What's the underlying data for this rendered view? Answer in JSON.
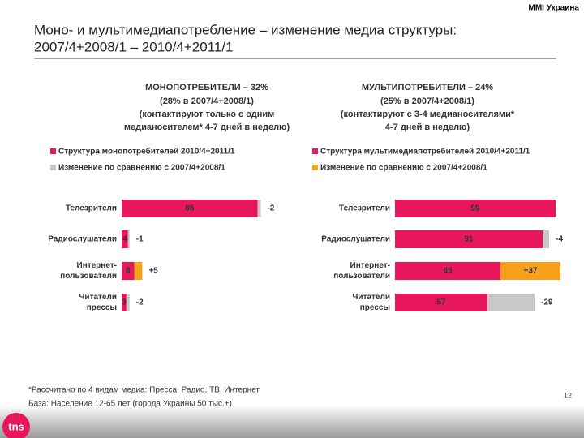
{
  "header": {
    "brand": "MMI Украина",
    "title": [
      "Моно- и мультимедиапотребление – изменение медиа структуры:",
      "2007/4+2008/1 – 2010/4+2011/1"
    ]
  },
  "chart_data": [
    {
      "type": "bar",
      "title": "МОНОПОТРЕБИТЕЛИ – 32%",
      "subtitle": [
        "(28% в 2007/4+2008/1)",
        "(контактируют только с одним",
        "медианосителем* 4-7 дней в неделю)"
      ],
      "categories": [
        [
          "Телезрители"
        ],
        [
          "Радиослушатели"
        ],
        [
          "Интернет-",
          "пользователи"
        ],
        [
          "Читатели",
          "прессы"
        ]
      ],
      "xlim": [
        0,
        100
      ],
      "series": [
        {
          "name": "Структура монопотребителей 2010/4+2011/1",
          "color": "#e8175d",
          "values": [
            86,
            4,
            8,
            3
          ]
        },
        {
          "name": "Изменение по сравнению с  2007/4+2008/1",
          "color": "#c8c8c8",
          "values": [
            -2,
            -1,
            5,
            -2
          ],
          "value_labels": [
            "-2",
            "-1",
            "+5",
            "-2"
          ],
          "colors": [
            "#c8c8c8",
            "#c8c8c8",
            "#f7a11a",
            "#c8c8c8"
          ]
        }
      ]
    },
    {
      "type": "bar",
      "title": "МУЛЬТИПОТРЕБИТЕЛИ – 24%",
      "subtitle": [
        "(25% в 2007/4+2008/1)",
        "(контактируют с 3-4  медианосителями*",
        "4-7 дней в неделю)"
      ],
      "categories": [
        [
          "Телезрители"
        ],
        [
          "Радиослушатели"
        ],
        [
          "Интернет-",
          "пользователи"
        ],
        [
          "Читатели",
          "прессы"
        ]
      ],
      "xlim": [
        0,
        100
      ],
      "series": [
        {
          "name": "Структура мультимедиапотребителей 2010/4+2011/1",
          "color": "#e8175d",
          "values": [
            99,
            91,
            65,
            57
          ]
        },
        {
          "name": "Изменение по сравнению с  2007/4+2008/1",
          "color": "#f7a11a",
          "values": [
            0,
            -4,
            37,
            -29
          ],
          "value_labels": [
            null,
            "-4",
            "+37",
            "-29"
          ],
          "colors": [
            "#c8c8c8",
            "#c8c8c8",
            "#f7a11a",
            "#c8c8c8"
          ]
        }
      ]
    }
  ],
  "footer": {
    "notes": [
      "*Рассчитано по 4 видам медиа: Пресса, Радио, ТВ, Интернет",
      "База: Население 12-65 лет (города Украины 50 тыс.+)"
    ],
    "page": "12",
    "logo": "tns"
  }
}
